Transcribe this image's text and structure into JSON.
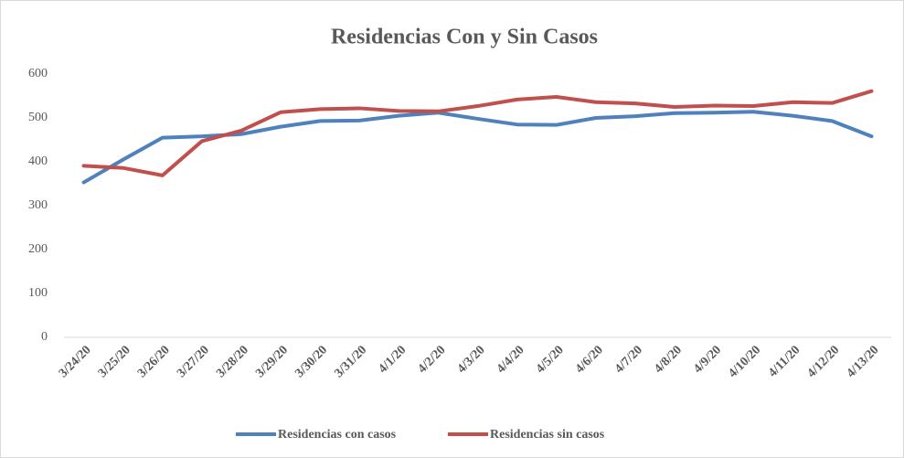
{
  "chart_data": {
    "type": "line",
    "title": "Residencias Con y Sin Casos",
    "categories": [
      "3/24/20",
      "3/25/20",
      "3/26/20",
      "3/27/20",
      "3/28/20",
      "3/29/20",
      "3/30/20",
      "3/31/20",
      "4/1/20",
      "4/2/20",
      "4/3/20",
      "4/4/20",
      "4/5/20",
      "4/6/20",
      "4/7/20",
      "4/8/20",
      "4/9/20",
      "4/10/20",
      "4/11/20",
      "4/12/20",
      "4/13/20"
    ],
    "series": [
      {
        "name": "Residencias con casos",
        "color": "#4f81bd",
        "values": [
          353,
          405,
          455,
          458,
          463,
          480,
          493,
          494,
          505,
          512,
          498,
          485,
          484,
          500,
          504,
          511,
          512,
          514,
          505,
          493,
          458
        ]
      },
      {
        "name": "Residencias sin casos",
        "color": "#c0504d",
        "values": [
          391,
          386,
          369,
          447,
          471,
          513,
          520,
          522,
          516,
          515,
          527,
          542,
          548,
          536,
          533,
          525,
          528,
          527,
          536,
          534,
          561
        ]
      }
    ],
    "ylim": [
      0,
      600
    ],
    "yticks": [
      0,
      100,
      200,
      300,
      400,
      500,
      600
    ],
    "grid": false
  }
}
